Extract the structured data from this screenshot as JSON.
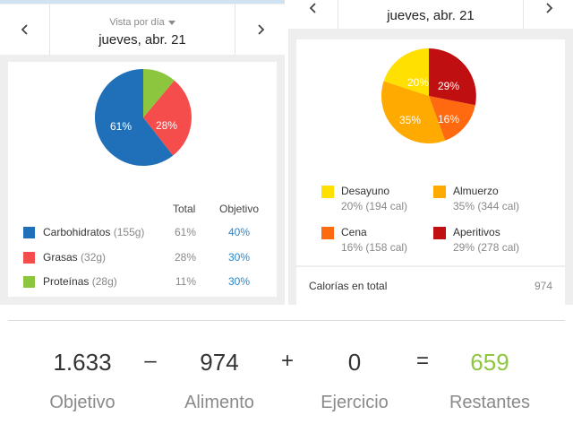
{
  "left_panel": {
    "view_label": "Vista por día",
    "date_label": "jueves, abr. 21",
    "pie_labels": [
      "61%",
      "28%"
    ],
    "headers": {
      "total": "Total",
      "goal": "Objetivo"
    },
    "macros": [
      {
        "name": "Carbohidratos",
        "grams": "(155g)",
        "total": "61%",
        "goal": "40%",
        "color": "#1f70b8"
      },
      {
        "name": "Grasas",
        "grams": "(32g)",
        "total": "28%",
        "goal": "30%",
        "color": "#f54c4c"
      },
      {
        "name": "Proteínas",
        "grams": "(28g)",
        "total": "11%",
        "goal": "30%",
        "color": "#8cc63e"
      }
    ]
  },
  "right_panel": {
    "date_label": "jueves, abr. 21",
    "pie_labels": [
      "20%",
      "29%",
      "35%",
      "16%"
    ],
    "meals": [
      {
        "name": "Desayuno",
        "detail": "20% (194 cal)",
        "color": "#ffe000"
      },
      {
        "name": "Almuerzo",
        "detail": "35% (344 cal)",
        "color": "#ffaa00"
      },
      {
        "name": "Cena",
        "detail": "16% (158 cal)",
        "color": "#ff6a10"
      },
      {
        "name": "Aperitivos",
        "detail": "29% (278 cal)",
        "color": "#c00f10"
      }
    ],
    "footer": {
      "label": "Calorías en total",
      "value": "974"
    }
  },
  "summary": {
    "goal_value": "1.633",
    "goal_label": "Objetivo",
    "minus": "–",
    "food_value": "974",
    "food_label": "Alimento",
    "plus": "+",
    "exercise_value": "0",
    "exercise_label": "Ejercicio",
    "equals": "=",
    "remaining_value": "659",
    "remaining_label": "Restantes",
    "remaining_color": "#8dc63f"
  }
}
